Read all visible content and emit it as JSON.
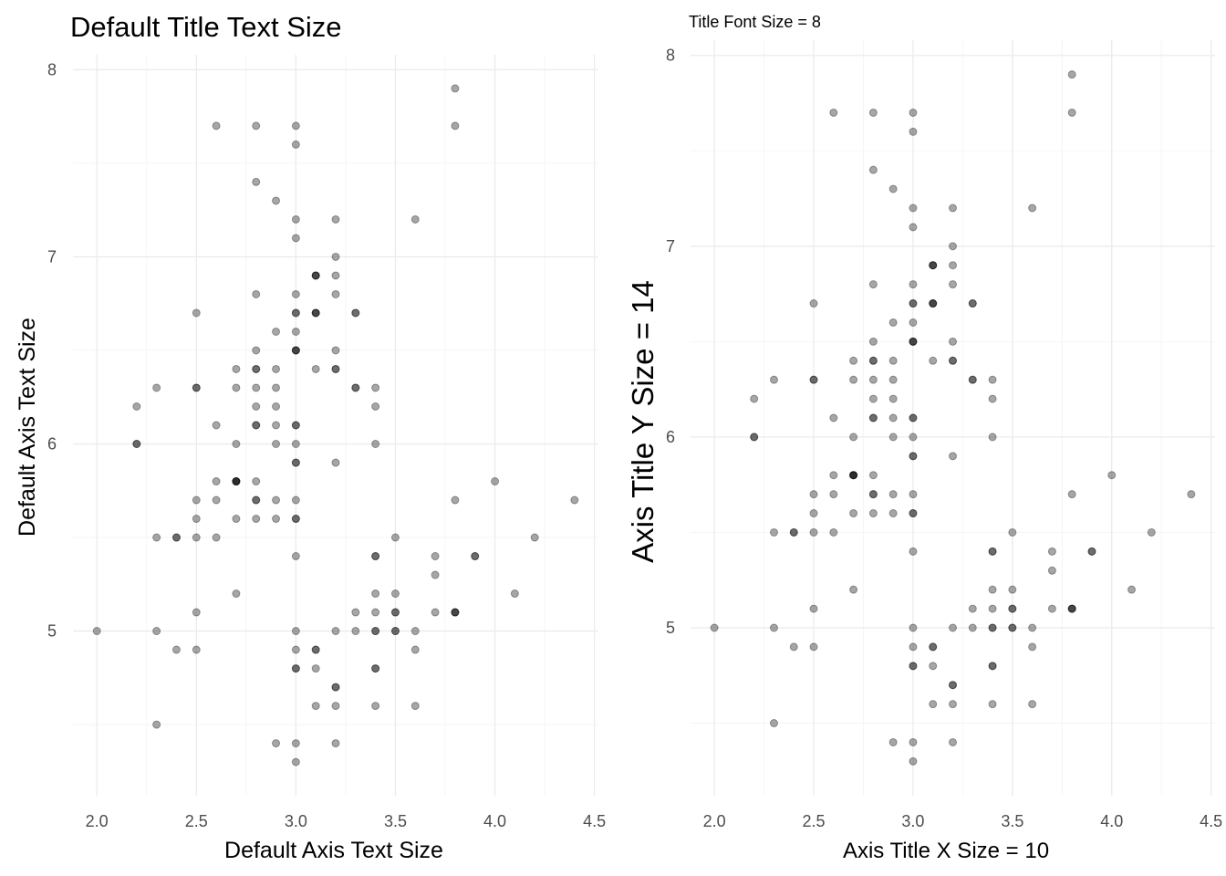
{
  "chart_data": [
    {
      "type": "scatter",
      "title": "Default Title Text Size",
      "xlabel": "Default Axis Text Size",
      "ylabel": "Default Axis Text Size",
      "xlim": [
        1.88,
        4.52
      ],
      "ylim": [
        4.12,
        8.08
      ],
      "xticks": [
        "2.0",
        "2.5",
        "3.0",
        "3.5",
        "4.0",
        "4.5"
      ],
      "xtick_values": [
        2.0,
        2.5,
        3.0,
        3.5,
        4.0,
        4.5
      ],
      "yticks": [
        "5",
        "6",
        "7",
        "8"
      ],
      "ytick_values": [
        5,
        6,
        7,
        8
      ],
      "grid": true,
      "point_color": "#000000",
      "point_alpha": 0.35
    },
    {
      "type": "scatter",
      "title": "Title Font Size = 8",
      "xlabel": "Axis Title X Size = 10",
      "ylabel": "Axis Title Y Size = 14",
      "xlim": [
        1.88,
        4.52
      ],
      "ylim": [
        4.12,
        8.08
      ],
      "xticks": [
        "2.0",
        "2.5",
        "3.0",
        "3.5",
        "4.0",
        "4.5"
      ],
      "xtick_values": [
        2.0,
        2.5,
        3.0,
        3.5,
        4.0,
        4.5
      ],
      "yticks": [
        "5",
        "6",
        "7",
        "8"
      ],
      "ytick_values": [
        5,
        6,
        7,
        8
      ],
      "grid": true,
      "point_color": "#000000",
      "point_alpha": 0.35
    }
  ],
  "points": {
    "x": [
      3.5,
      3.0,
      3.2,
      3.1,
      3.6,
      3.9,
      3.4,
      3.4,
      2.9,
      3.1,
      3.7,
      3.4,
      3.0,
      3.0,
      4.0,
      4.4,
      3.9,
      3.5,
      3.8,
      3.8,
      3.4,
      3.7,
      3.6,
      3.3,
      3.4,
      3.0,
      3.4,
      3.5,
      3.4,
      3.2,
      3.1,
      3.4,
      4.1,
      4.2,
      3.1,
      3.2,
      3.5,
      3.6,
      3.0,
      3.4,
      3.5,
      2.3,
      3.2,
      3.5,
      3.8,
      3.0,
      3.8,
      3.2,
      3.7,
      3.3,
      3.2,
      3.2,
      3.1,
      2.3,
      2.8,
      2.8,
      3.3,
      2.4,
      2.9,
      2.7,
      2.0,
      3.0,
      2.2,
      2.9,
      2.9,
      3.1,
      3.0,
      2.7,
      2.2,
      2.5,
      3.2,
      2.8,
      2.5,
      2.8,
      2.9,
      3.0,
      2.8,
      3.0,
      2.9,
      2.6,
      2.4,
      2.4,
      2.7,
      2.7,
      3.0,
      3.4,
      3.1,
      2.3,
      3.0,
      2.5,
      2.6,
      3.0,
      2.6,
      2.3,
      2.7,
      3.0,
      2.9,
      2.9,
      2.5,
      2.8,
      3.3,
      2.7,
      3.0,
      2.9,
      3.0,
      3.0,
      2.5,
      2.9,
      2.5,
      3.6,
      3.2,
      2.7,
      3.0,
      2.5,
      2.8,
      3.2,
      3.0,
      3.8,
      2.6,
      2.2,
      3.2,
      2.8,
      2.8,
      2.7,
      3.3,
      3.2,
      2.8,
      3.0,
      2.8,
      3.0,
      2.8,
      3.8,
      2.8,
      2.8,
      2.6,
      3.0,
      3.4,
      3.1,
      3.0,
      3.1,
      3.1,
      3.1,
      2.7,
      3.2,
      3.3,
      3.0,
      2.5,
      3.0,
      3.4,
      3.0
    ],
    "y": [
      5.1,
      4.9,
      4.7,
      4.6,
      5.0,
      5.4,
      4.6,
      5.0,
      4.4,
      4.9,
      5.4,
      4.8,
      4.8,
      4.3,
      5.8,
      5.7,
      5.4,
      5.1,
      5.7,
      5.1,
      5.4,
      5.1,
      4.6,
      5.1,
      4.8,
      5.0,
      5.0,
      5.2,
      5.2,
      4.7,
      4.8,
      5.4,
      5.2,
      5.5,
      4.9,
      5.0,
      5.5,
      4.9,
      4.4,
      5.1,
      5.0,
      4.5,
      4.4,
      5.0,
      5.1,
      4.8,
      5.1,
      4.6,
      5.3,
      5.0,
      7.0,
      6.4,
      6.9,
      5.5,
      6.5,
      5.7,
      6.3,
      4.9,
      6.6,
      5.2,
      5.0,
      5.9,
      6.0,
      6.1,
      5.6,
      6.7,
      5.6,
      5.8,
      6.2,
      5.6,
      5.9,
      6.1,
      6.3,
      6.1,
      6.4,
      6.6,
      6.8,
      6.7,
      6.0,
      5.7,
      5.5,
      5.5,
      5.8,
      6.0,
      5.4,
      6.0,
      6.7,
      6.3,
      5.6,
      5.5,
      5.5,
      6.1,
      5.8,
      5.0,
      5.6,
      5.7,
      5.7,
      6.2,
      5.1,
      5.7,
      6.3,
      5.8,
      7.1,
      6.3,
      6.5,
      7.6,
      4.9,
      7.3,
      6.7,
      7.2,
      6.5,
      6.4,
      6.8,
      5.7,
      5.8,
      6.4,
      6.5,
      7.7,
      7.7,
      6.0,
      6.9,
      5.6,
      7.7,
      6.3,
      6.7,
      7.2,
      6.2,
      6.1,
      6.4,
      7.2,
      7.4,
      7.9,
      6.4,
      6.3,
      6.1,
      7.7,
      6.3,
      6.4,
      6.0,
      6.9,
      6.7,
      6.9,
      5.8,
      6.8,
      6.7,
      6.7,
      6.3,
      6.5,
      6.2,
      5.9
    ]
  }
}
